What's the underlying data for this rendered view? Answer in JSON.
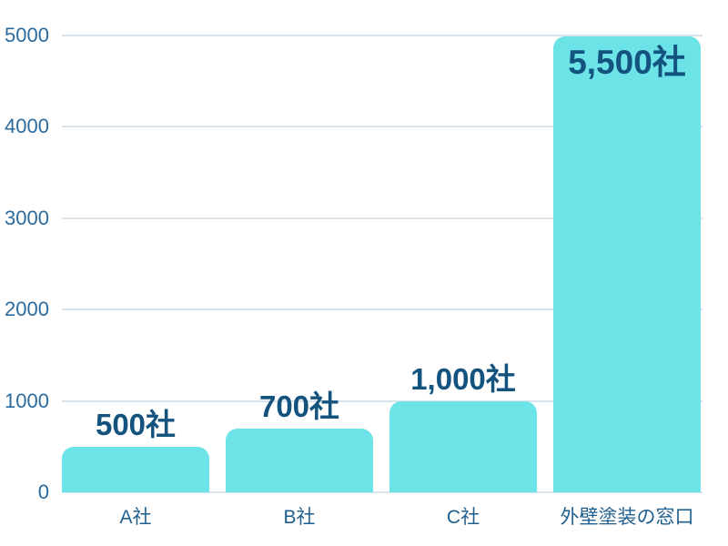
{
  "chart_data": {
    "type": "bar",
    "categories": [
      "A社",
      "B社",
      "C社",
      "外壁塗装の窓口"
    ],
    "values": [
      500,
      700,
      1000,
      5500
    ],
    "value_labels": [
      "500社",
      "700社",
      "1,000社",
      "5,500社"
    ],
    "title": "",
    "xlabel": "",
    "ylabel": "",
    "ylim": [
      0,
      5000
    ],
    "y_ticks": [
      0,
      1000,
      2000,
      3000,
      4000,
      5000
    ],
    "grid": true,
    "legend": false,
    "layout_hints": {
      "tick_label_position": "left",
      "overflow_bar_behavior": "clipped at axis max, value label drawn inside bar top"
    }
  },
  "colors": {
    "bar_fill": "#6BE3E7",
    "value_label": "#15537F",
    "tick_label": "#2B6B9E",
    "category_label": "#1F5F8F",
    "gridline": "#D8E3ED",
    "background": "#FFFFFF"
  }
}
